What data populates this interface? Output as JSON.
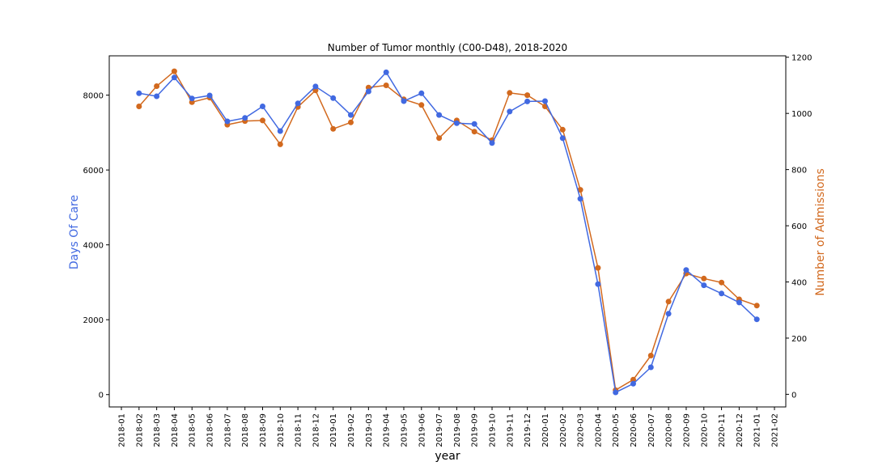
{
  "chart_data": {
    "type": "line",
    "title": "Number of Tumor monthly (C00-D48), 2018-2020",
    "xlabel": "year",
    "ylabel_left": "Days Of Care",
    "ylabel_right": "Number of Admissions",
    "ylim_left": [
      -330,
      9050
    ],
    "ylim_right": [
      -45,
      1205
    ],
    "yticks_left": [
      "0",
      "2000",
      "4000",
      "6000",
      "8000"
    ],
    "yticks_right": [
      "0",
      "200",
      "400",
      "600",
      "800",
      "1000",
      "1200"
    ],
    "categories": [
      "2018-01",
      "2018-02",
      "2018-03",
      "2018-04",
      "2018-05",
      "2018-06",
      "2018-07",
      "2018-08",
      "2018-09",
      "2018-10",
      "2018-11",
      "2018-12",
      "2019-01",
      "2019-02",
      "2019-03",
      "2019-04",
      "2019-05",
      "2019-06",
      "2019-07",
      "2019-08",
      "2019-09",
      "2019-10",
      "2019-11",
      "2019-12",
      "2020-01",
      "2020-02",
      "2020-03",
      "2020-04",
      "2020-05",
      "2020-06",
      "2020-07",
      "2020-08",
      "2020-09",
      "2020-10",
      "2020-11",
      "2020-12",
      "2021-01",
      "2021-02"
    ],
    "grid": false,
    "colors": {
      "left": "#4169e1",
      "right": "#d2691e"
    },
    "series": [
      {
        "axis": "left",
        "values": [
          null,
          8050,
          7970,
          8470,
          7910,
          7990,
          7300,
          7390,
          7700,
          7040,
          7780,
          8230,
          7920,
          7470,
          8100,
          8610,
          7840,
          8050,
          7470,
          7250,
          7230,
          6720,
          7560,
          7830,
          7840,
          6850,
          5230,
          2950,
          60,
          290,
          730,
          2160,
          3330,
          2920,
          2700,
          2460,
          2010,
          null
        ]
      },
      {
        "axis": "right",
        "values": [
          null,
          1025,
          1097,
          1150,
          1040,
          1056,
          960,
          973,
          975,
          890,
          1023,
          1082,
          945,
          968,
          1092,
          1100,
          1050,
          1030,
          912,
          975,
          935,
          905,
          1073,
          1065,
          1025,
          942,
          728,
          450,
          15,
          52,
          138,
          330,
          430,
          412,
          398,
          338,
          316,
          null
        ]
      }
    ]
  }
}
